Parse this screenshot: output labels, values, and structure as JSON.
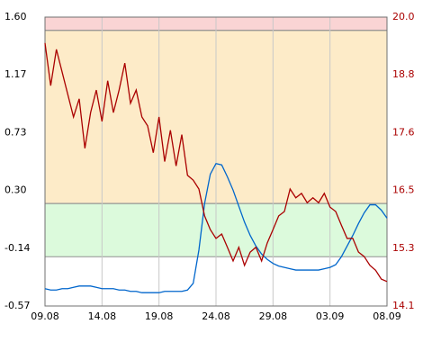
{
  "chart_data": {
    "type": "line",
    "xlim": [
      0,
      30
    ],
    "xticks": [
      {
        "value": 0,
        "label": "09.08"
      },
      {
        "value": 5,
        "label": "14.08"
      },
      {
        "value": 10,
        "label": "19.08"
      },
      {
        "value": 15,
        "label": "24.08"
      },
      {
        "value": 20,
        "label": "29.08"
      },
      {
        "value": 25,
        "label": "03.09"
      },
      {
        "value": 30,
        "label": "08.09"
      }
    ],
    "ylim": [
      -0.57,
      1.6
    ],
    "yticks": [
      {
        "value": -0.57,
        "label": "-0.57"
      },
      {
        "value": -0.136,
        "label": "-0.14"
      },
      {
        "value": 0.298,
        "label": "0.30"
      },
      {
        "value": 0.732,
        "label": "0.73"
      },
      {
        "value": 1.166,
        "label": "1.17"
      },
      {
        "value": 1.6,
        "label": "1.60"
      }
    ],
    "y2lim": [
      14.1,
      20.0
    ],
    "y2ticks": [
      {
        "value": 14.1,
        "label": "14.1"
      },
      {
        "value": 15.28,
        "label": "15.3"
      },
      {
        "value": 16.46,
        "label": "16.5"
      },
      {
        "value": 17.64,
        "label": "17.6"
      },
      {
        "value": 18.82,
        "label": "18.8"
      },
      {
        "value": 20.0,
        "label": "20.0"
      }
    ],
    "y2color": "#aa0000",
    "grid": true,
    "bands": [
      {
        "from": 1.5,
        "to": 1.6,
        "color": "#fad4d4"
      },
      {
        "from": 0.2,
        "to": 1.5,
        "color": "#fdebc8"
      },
      {
        "from": -0.2,
        "to": 0.2,
        "color": "#dcfadc"
      }
    ],
    "x": [
      0,
      0.5,
      1,
      1.5,
      2,
      2.5,
      3,
      3.5,
      4,
      4.5,
      5,
      5.5,
      6,
      6.5,
      7,
      7.5,
      8,
      8.5,
      9,
      9.5,
      10,
      10.5,
      11,
      11.5,
      12,
      12.5,
      13,
      13.5,
      14,
      14.5,
      15,
      15.5,
      16,
      16.5,
      17,
      17.5,
      18,
      18.5,
      19,
      19.5,
      20,
      20.5,
      21,
      21.5,
      22,
      22.5,
      23,
      23.5,
      24,
      24.5,
      25,
      25.5,
      26,
      26.5,
      27,
      27.5,
      28,
      28.5,
      29,
      29.5,
      30
    ],
    "series": [
      {
        "color": "#0066cc",
        "axis": "y",
        "values": [
          -0.44,
          -0.45,
          -0.45,
          -0.44,
          -0.44,
          -0.43,
          -0.42,
          -0.42,
          -0.42,
          -0.43,
          -0.44,
          -0.44,
          -0.44,
          -0.45,
          -0.45,
          -0.46,
          -0.46,
          -0.47,
          -0.47,
          -0.47,
          -0.47,
          -0.46,
          -0.46,
          -0.46,
          -0.46,
          -0.45,
          -0.4,
          -0.15,
          0.2,
          0.42,
          0.5,
          0.49,
          0.4,
          0.3,
          0.18,
          0.06,
          -0.04,
          -0.12,
          -0.18,
          -0.22,
          -0.25,
          -0.27,
          -0.28,
          -0.29,
          -0.3,
          -0.3,
          -0.3,
          -0.3,
          -0.3,
          -0.29,
          -0.28,
          -0.26,
          -0.2,
          -0.12,
          -0.04,
          0.05,
          0.13,
          0.19,
          0.19,
          0.15,
          0.09
        ]
      },
      {
        "color": "#aa0000",
        "axis": "y2",
        "values": [
          19.47,
          18.6,
          19.34,
          18.88,
          18.42,
          17.96,
          18.33,
          17.32,
          18.05,
          18.51,
          17.87,
          18.7,
          18.05,
          18.51,
          19.06,
          18.24,
          18.51,
          17.96,
          17.78,
          17.23,
          17.96,
          17.05,
          17.69,
          16.96,
          17.6,
          16.77,
          16.67,
          16.49,
          15.94,
          15.66,
          15.48,
          15.57,
          15.3,
          15.02,
          15.3,
          14.93,
          15.2,
          15.3,
          15.02,
          15.39,
          15.66,
          15.94,
          16.03,
          16.49,
          16.31,
          16.4,
          16.21,
          16.31,
          16.21,
          16.4,
          16.12,
          16.03,
          15.75,
          15.48,
          15.48,
          15.2,
          15.11,
          14.93,
          14.83,
          14.65,
          14.6
        ]
      }
    ]
  }
}
